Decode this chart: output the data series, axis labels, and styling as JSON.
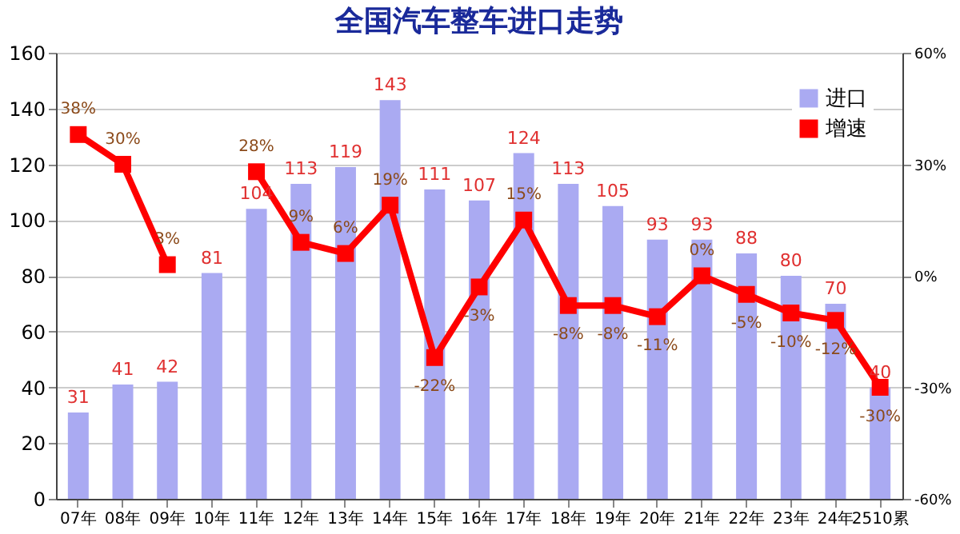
{
  "chart_data": {
    "type": "bar",
    "title": "全国汽车整车进口走势",
    "categories": [
      "07年",
      "08年",
      "09年",
      "10年",
      "11年",
      "12年",
      "13年",
      "14年",
      "15年",
      "16年",
      "17年",
      "18年",
      "19年",
      "20年",
      "21年",
      "22年",
      "23年",
      "24年",
      "2510累"
    ],
    "series": [
      {
        "name": "进口",
        "color": "#aaaaf2",
        "values": [
          31,
          41,
          42,
          81,
          104,
          113,
          119,
          143,
          111,
          107,
          124,
          113,
          105,
          93,
          93,
          88,
          80,
          70,
          40
        ],
        "value_labels": [
          "31",
          "41",
          "42",
          "81",
          "104",
          "113",
          "119",
          "143",
          "111",
          "107",
          "124",
          "113",
          "105",
          "93",
          "93",
          "88",
          "80",
          "70",
          "40"
        ]
      },
      {
        "name": "增速",
        "type": "line",
        "axis": "y2",
        "color": "#ff0000",
        "marker": "square",
        "line_style": "solid",
        "values": [
          38,
          30,
          3,
          null,
          28,
          9,
          6,
          19,
          -22,
          -3,
          15,
          -8,
          -8,
          -11,
          0,
          -5,
          -10,
          -12,
          -30
        ],
        "value_labels": [
          "38%",
          "30%",
          "3%",
          null,
          "28%",
          "9%",
          "6%",
          "19%",
          "-22%",
          "-3%",
          "15%",
          "-8%",
          "-8%",
          "-11%",
          "0%",
          "-5%",
          "-10%",
          "-12%",
          "-30%"
        ]
      }
    ],
    "ylim": [
      0,
      160
    ],
    "yticks": [
      0,
      20,
      40,
      60,
      80,
      100,
      120,
      140,
      160
    ],
    "y2lim": [
      -60,
      60
    ],
    "y2ticks": [
      {
        "value": -60,
        "label": "-60%"
      },
      {
        "value": -30,
        "label": "-30%"
      },
      {
        "value": 0,
        "label": "0%"
      },
      {
        "value": 30,
        "label": "30%"
      },
      {
        "value": 60,
        "label": "60%"
      }
    ],
    "grid": "y",
    "legend": "top right"
  }
}
